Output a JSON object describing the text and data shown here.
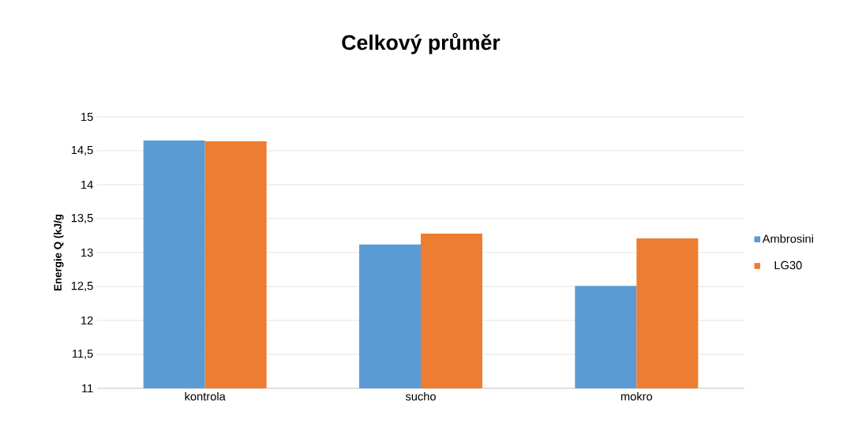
{
  "chart_data": {
    "type": "bar",
    "title": "Celkový průměr",
    "ylabel": "Energie Q (kJ/g",
    "categories": [
      "kontrola",
      "sucho",
      "mokro"
    ],
    "series": [
      {
        "name": "Ambrosini",
        "color": "#5b9bd5",
        "values": [
          14.65,
          13.12,
          12.51
        ]
      },
      {
        "name": "LG30",
        "color": "#ed7d31",
        "values": [
          14.64,
          13.28,
          13.21
        ]
      }
    ],
    "ylim": [
      11,
      15
    ],
    "yticks": [
      11,
      {
        "value": 11.5,
        "label": "11,5"
      },
      12,
      {
        "value": 12.5,
        "label": "12,5"
      },
      13,
      {
        "value": 13.5,
        "label": "13,5"
      },
      14,
      {
        "value": 14.5,
        "label": "14,5"
      },
      15
    ],
    "grid": "y",
    "legend": "right"
  }
}
